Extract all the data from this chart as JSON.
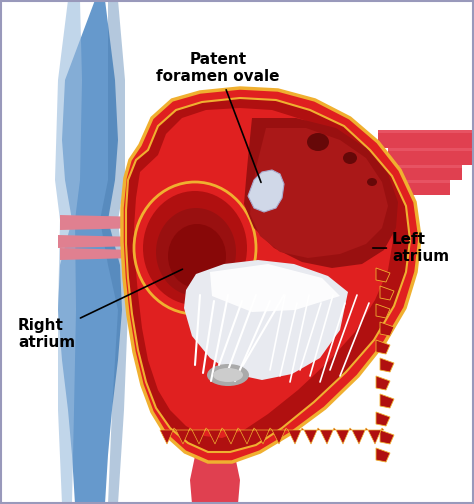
{
  "bg": "#ffffff",
  "border_color": "#9999bb",
  "heart_red": "#e02020",
  "heart_dark_red": "#b01010",
  "heart_deeper_red": "#880808",
  "heart_gold": "#f0b030",
  "blue_vessel": "#6699cc",
  "blue_light": "#99bbdd",
  "blue_shadow": "#4477aa",
  "red_vessel": "#e04050",
  "white_tissue": "#ffffff",
  "gray_tissue": "#cccccc",
  "silver_tissue": "#c8c8d8",
  "annotation_color": "#111111",
  "labels": {
    "patent": "Patent\nforamen ovale",
    "right": "Right\natrium",
    "left": "Left\natrium"
  },
  "font_size": 11,
  "figsize": [
    4.74,
    5.04
  ],
  "dpi": 100
}
